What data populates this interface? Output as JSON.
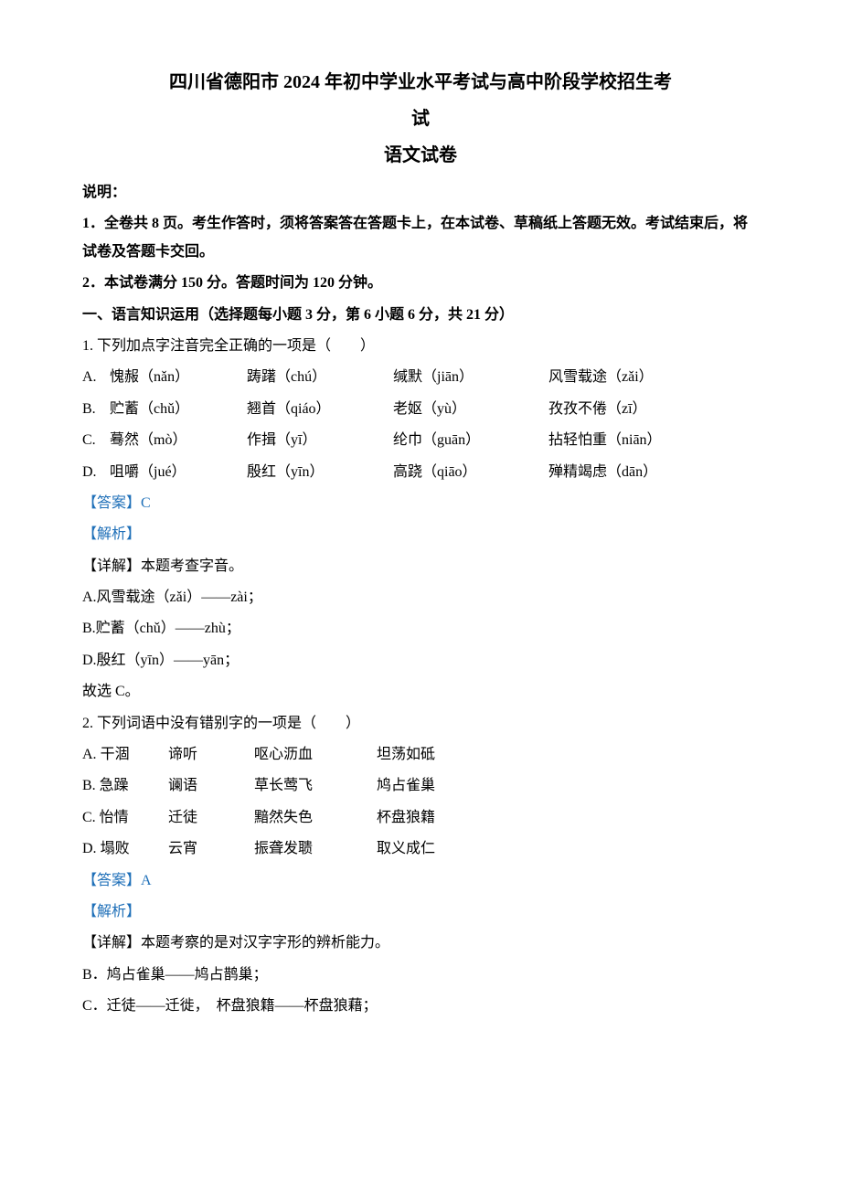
{
  "title_line1": "四川省德阳市 2024 年初中学业水平考试与高中阶段学校招生考",
  "title_line2": "试",
  "subtitle": "语文试卷",
  "instr_label": "说明：",
  "instr_1": "1．全卷共 8 页。考生作答时，须将答案答在答题卡上，在本试卷、草稿纸上答题无效。考试结束后，将试卷及答题卡交回。",
  "instr_2": "2．本试卷满分 150 分。答题时间为 120 分钟。",
  "section1_head": "一、语言知识运用（选择题每小题 3 分，第 6 小题 6 分，共 21 分）",
  "q1": {
    "stem": "1. 下列加点字注音完全正确的一项是（　　）",
    "options": [
      {
        "letter": "A.",
        "c1": "愧赧（nǎn）",
        "c2": "踌躇（chú）",
        "c3": "缄默（jiān）",
        "c4": "风雪载途（zǎi）"
      },
      {
        "letter": "B.",
        "c1": "贮蓄（chǔ）",
        "c2": "翘首（qiáo）",
        "c3": "老妪（yù）",
        "c4": "孜孜不倦（zī）"
      },
      {
        "letter": "C.",
        "c1": "蓦然（mò）",
        "c2": "作揖（yī）",
        "c3": "纶巾（guān）",
        "c4": "拈轻怕重（niān）"
      },
      {
        "letter": "D.",
        "c1": "咀嚼（jué）",
        "c2": "殷红（yīn）",
        "c3": "高跷（qiāo）",
        "c4": "殚精竭虑（dān）"
      }
    ],
    "answer_label": "【答案】C",
    "analysis_label": "【解析】",
    "detail_label": "【详解】本题考查字音。",
    "details": [
      "A.风雪载途（zǎi）——zài；",
      "B.贮蓄（chǔ）——zhù；",
      "D.殷红（yīn）——yān；",
      "故选 C。"
    ]
  },
  "q2": {
    "stem": "2. 下列词语中没有错别字的一项是（　　）",
    "options": [
      {
        "letter": "A.",
        "c1": "干涸",
        "c2": "谛听",
        "c3": "呕心沥血",
        "c4": "坦荡如砥"
      },
      {
        "letter": "B.",
        "c1": "急躁",
        "c2": "谰语",
        "c3": "草长莺飞",
        "c4": "鸠占雀巢"
      },
      {
        "letter": "C.",
        "c1": "怡情",
        "c2": "迁徒",
        "c3": "黯然失色",
        "c4": "杯盘狼籍"
      },
      {
        "letter": "D.",
        "c1": "塌败",
        "c2": "云宵",
        "c3": "振聋发聩",
        "c4": "取义成仁"
      }
    ],
    "answer_label": "【答案】A",
    "analysis_label": "【解析】",
    "detail_label": "【详解】本题考察的是对汉字字形的辨析能力。",
    "details": [
      "B．鸠占雀巢——鸠占鹊巢；",
      "C．迁徒——迁徙，　杯盘狼籍——杯盘狼藉；"
    ]
  }
}
